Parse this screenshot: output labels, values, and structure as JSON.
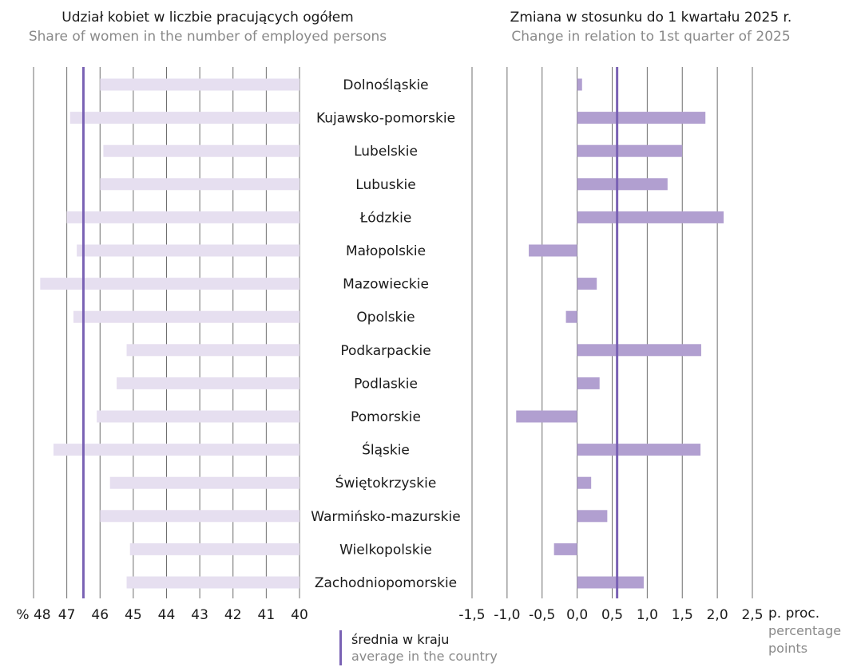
{
  "titles": {
    "left": {
      "pl": "Udział kobiet w liczbie pracujących ogółem",
      "en": "Share of women in the number of employed persons"
    },
    "right": {
      "pl": "Zmiana  w stosunku do 1 kwartału 2025 r.",
      "en": "Change in relation to 1st quarter of 2025"
    }
  },
  "legend": {
    "pl": "średnia w kraju",
    "en": "average in the country"
  },
  "unit": {
    "pl": "p. proc.",
    "en": "percentage points"
  },
  "colors": {
    "left_bar": "#e6dff0",
    "right_bar": "#b19fd0",
    "average_line": "#7a62b4",
    "grid": "#6f6f6f",
    "text": "#1a1a1a"
  },
  "chart_data": [
    {
      "type": "bar",
      "orientation": "horizontal",
      "axis_reversed": true,
      "categories": [
        "Dolnośląskie",
        "Kujawsko-pomorskie",
        "Lubelskie",
        "Lubuskie",
        "Łódzkie",
        "Małopolskie",
        "Mazowieckie",
        "Opolskie",
        "Podkarpackie",
        "Podlaskie",
        "Pomorskie",
        "Śląskie",
        "Świętokrzyskie",
        "Warmińsko-mazurskie",
        "Wielkopolskie",
        "Zachodniopomorskie"
      ],
      "values": [
        46.0,
        46.9,
        45.9,
        46.0,
        47.0,
        46.7,
        47.8,
        46.8,
        45.2,
        45.5,
        46.1,
        47.4,
        45.7,
        46.0,
        45.1,
        45.2
      ],
      "average": 46.5,
      "xlim": [
        40,
        48
      ],
      "xticks": [
        "% 48",
        "47",
        "46",
        "45",
        "44",
        "43",
        "42",
        "41",
        "40"
      ],
      "grid": true
    },
    {
      "type": "bar",
      "orientation": "horizontal",
      "categories": [
        "Dolnośląskie",
        "Kujawsko-pomorskie",
        "Lubelskie",
        "Lubuskie",
        "Łódzkie",
        "Małopolskie",
        "Mazowieckie",
        "Opolskie",
        "Podkarpackie",
        "Podlaskie",
        "Pomorskie",
        "Śląskie",
        "Świętokrzyskie",
        "Warmińsko-mazurskie",
        "Wielkopolskie",
        "Zachodniopomorskie"
      ],
      "values": [
        0.07,
        1.83,
        1.5,
        1.29,
        2.09,
        -0.69,
        0.28,
        -0.16,
        1.77,
        0.32,
        -0.87,
        1.76,
        0.2,
        0.43,
        -0.33,
        0.95
      ],
      "average": 0.57,
      "xlim": [
        -1.5,
        2.5
      ],
      "xticks": [
        "-1,5",
        "-1,0",
        "-0,5",
        "0,0",
        "0,5",
        "1,0",
        "1,5",
        "2,0",
        "2,5"
      ],
      "grid": true
    }
  ]
}
